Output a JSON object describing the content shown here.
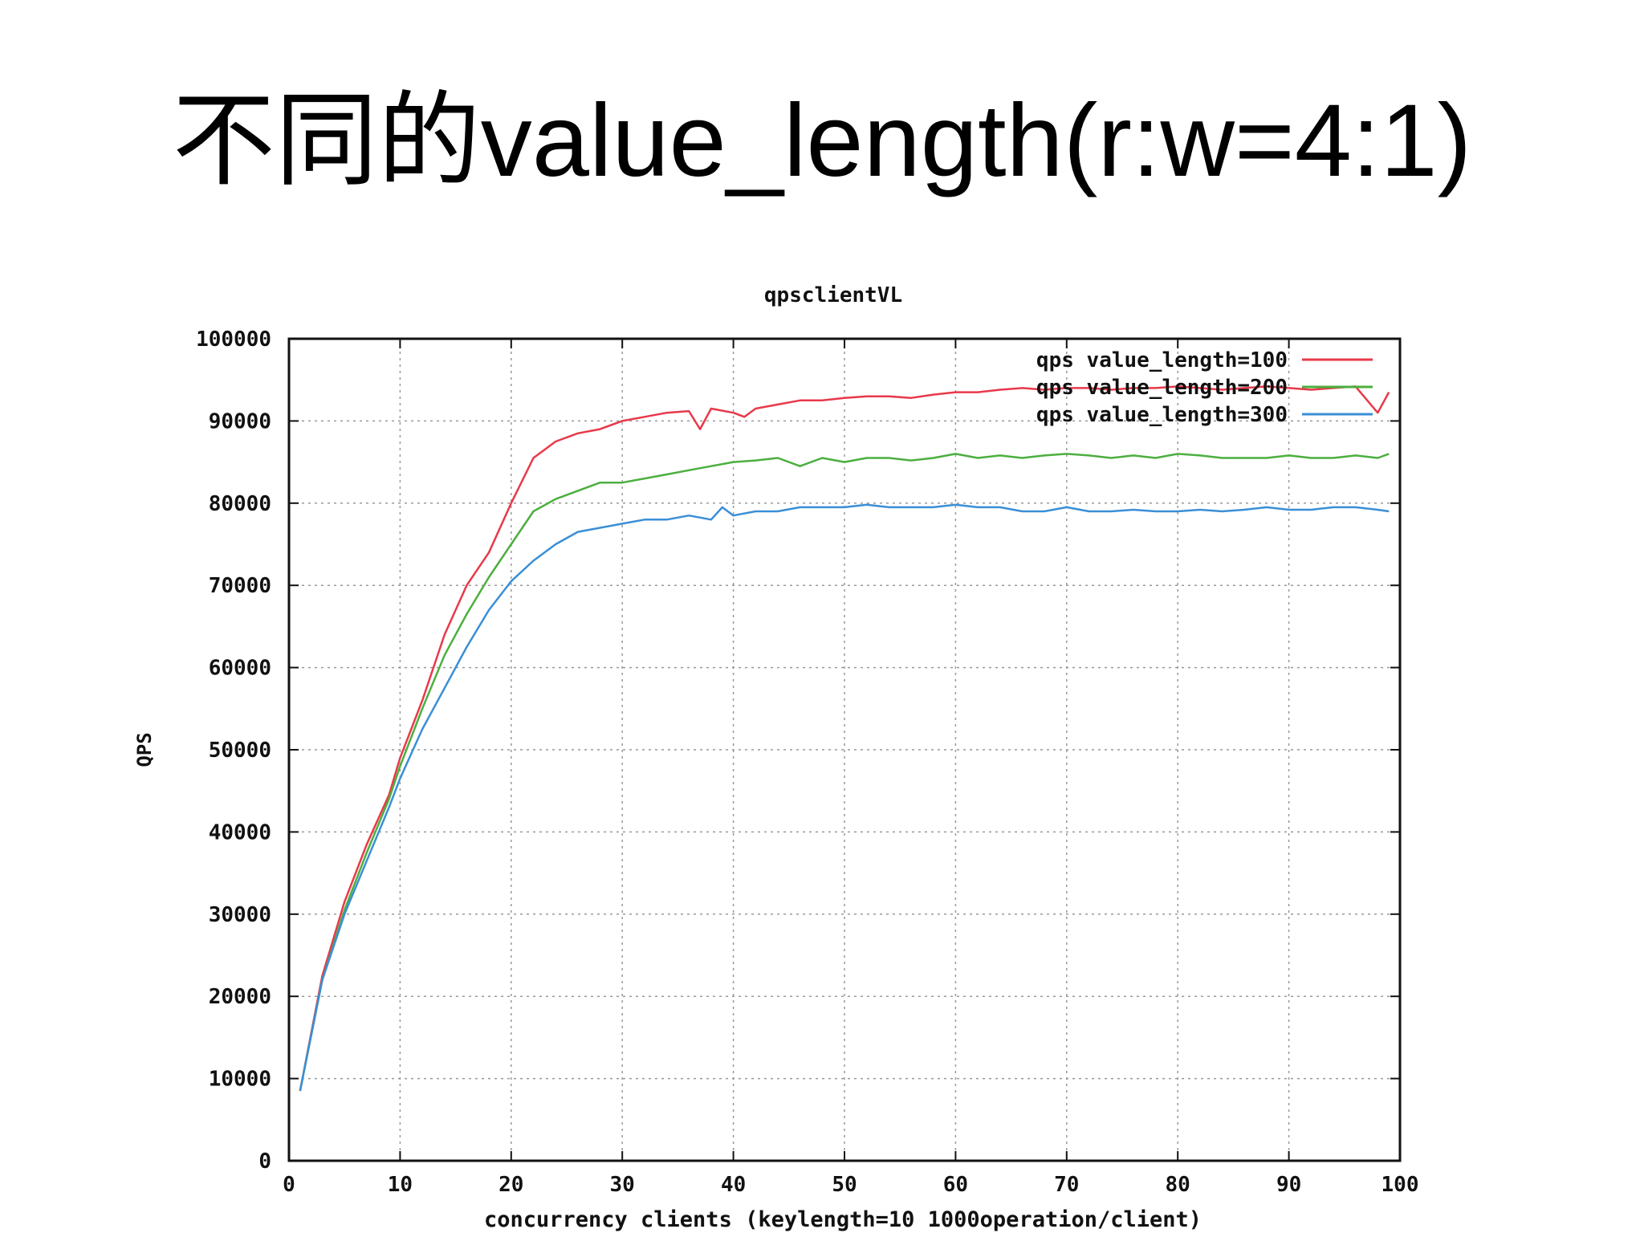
{
  "slide": {
    "title": "不同的value_length(r:w=4:1)"
  },
  "chart_data": {
    "type": "line",
    "title": "qpsclientVL",
    "xlabel": "concurrency clients (keylength=10 1000operation/client)",
    "ylabel": "QPS",
    "xlim": [
      0,
      100
    ],
    "ylim": [
      0,
      100000
    ],
    "xticks": [
      0,
      10,
      20,
      30,
      40,
      50,
      60,
      70,
      80,
      90,
      100
    ],
    "yticks": [
      0,
      10000,
      20000,
      30000,
      40000,
      50000,
      60000,
      70000,
      80000,
      90000,
      100000
    ],
    "grid": true,
    "legend_position": "top-right",
    "series": [
      {
        "name": "qps value_length=100",
        "color": "#e8394a",
        "x": [
          1,
          3,
          5,
          7,
          9,
          10,
          12,
          14,
          16,
          18,
          20,
          22,
          24,
          26,
          28,
          30,
          32,
          34,
          36,
          37,
          38,
          40,
          41,
          42,
          44,
          46,
          48,
          50,
          52,
          54,
          56,
          58,
          60,
          62,
          64,
          66,
          68,
          70,
          72,
          74,
          76,
          78,
          80,
          82,
          84,
          86,
          88,
          90,
          92,
          94,
          96,
          98,
          99
        ],
        "y": [
          8500,
          22500,
          31500,
          38500,
          44500,
          49000,
          56000,
          64000,
          70000,
          74000,
          80000,
          85500,
          87500,
          88500,
          89000,
          90000,
          90500,
          91000,
          91200,
          89000,
          91500,
          91000,
          90500,
          91500,
          92000,
          92500,
          92500,
          92800,
          93000,
          93000,
          92800,
          93200,
          93500,
          93500,
          93800,
          94000,
          93800,
          94000,
          94000,
          93800,
          94000,
          94000,
          94200,
          94000,
          93800,
          94000,
          94200,
          94000,
          93800,
          94000,
          94200,
          91000,
          93500
        ]
      },
      {
        "name": "qps value_length=200",
        "color": "#4caf3f",
        "x": [
          1,
          3,
          5,
          7,
          9,
          10,
          12,
          14,
          16,
          18,
          20,
          22,
          24,
          26,
          28,
          30,
          32,
          34,
          36,
          38,
          40,
          42,
          44,
          46,
          48,
          50,
          52,
          54,
          56,
          58,
          60,
          62,
          64,
          66,
          68,
          70,
          72,
          74,
          76,
          78,
          80,
          82,
          84,
          86,
          88,
          90,
          92,
          94,
          96,
          98,
          99
        ],
        "y": [
          8500,
          22000,
          30500,
          37500,
          44000,
          48000,
          55000,
          61500,
          66500,
          71000,
          75000,
          79000,
          80500,
          81500,
          82500,
          82500,
          83000,
          83500,
          84000,
          84500,
          85000,
          85200,
          85500,
          84500,
          85500,
          85000,
          85500,
          85500,
          85200,
          85500,
          86000,
          85500,
          85800,
          85500,
          85800,
          86000,
          85800,
          85500,
          85800,
          85500,
          86000,
          85800,
          85500,
          85500,
          85500,
          85800,
          85500,
          85500,
          85800,
          85500,
          86000
        ]
      },
      {
        "name": "qps value_length=300",
        "color": "#3a8fd6",
        "x": [
          1,
          3,
          5,
          7,
          9,
          10,
          12,
          14,
          16,
          18,
          20,
          22,
          24,
          26,
          28,
          30,
          32,
          34,
          36,
          38,
          39,
          40,
          42,
          44,
          46,
          48,
          50,
          52,
          54,
          56,
          58,
          60,
          62,
          64,
          66,
          68,
          70,
          72,
          74,
          76,
          78,
          80,
          82,
          84,
          86,
          88,
          90,
          92,
          94,
          96,
          98,
          99
        ],
        "y": [
          8500,
          22000,
          30000,
          36500,
          43000,
          46500,
          52500,
          57500,
          62500,
          67000,
          70500,
          73000,
          75000,
          76500,
          77000,
          77500,
          78000,
          78000,
          78500,
          78000,
          79500,
          78500,
          79000,
          79000,
          79500,
          79500,
          79500,
          79800,
          79500,
          79500,
          79500,
          79800,
          79500,
          79500,
          79000,
          79000,
          79500,
          79000,
          79000,
          79200,
          79000,
          79000,
          79200,
          79000,
          79200,
          79500,
          79200,
          79200,
          79500,
          79500,
          79200,
          79000
        ]
      }
    ]
  }
}
